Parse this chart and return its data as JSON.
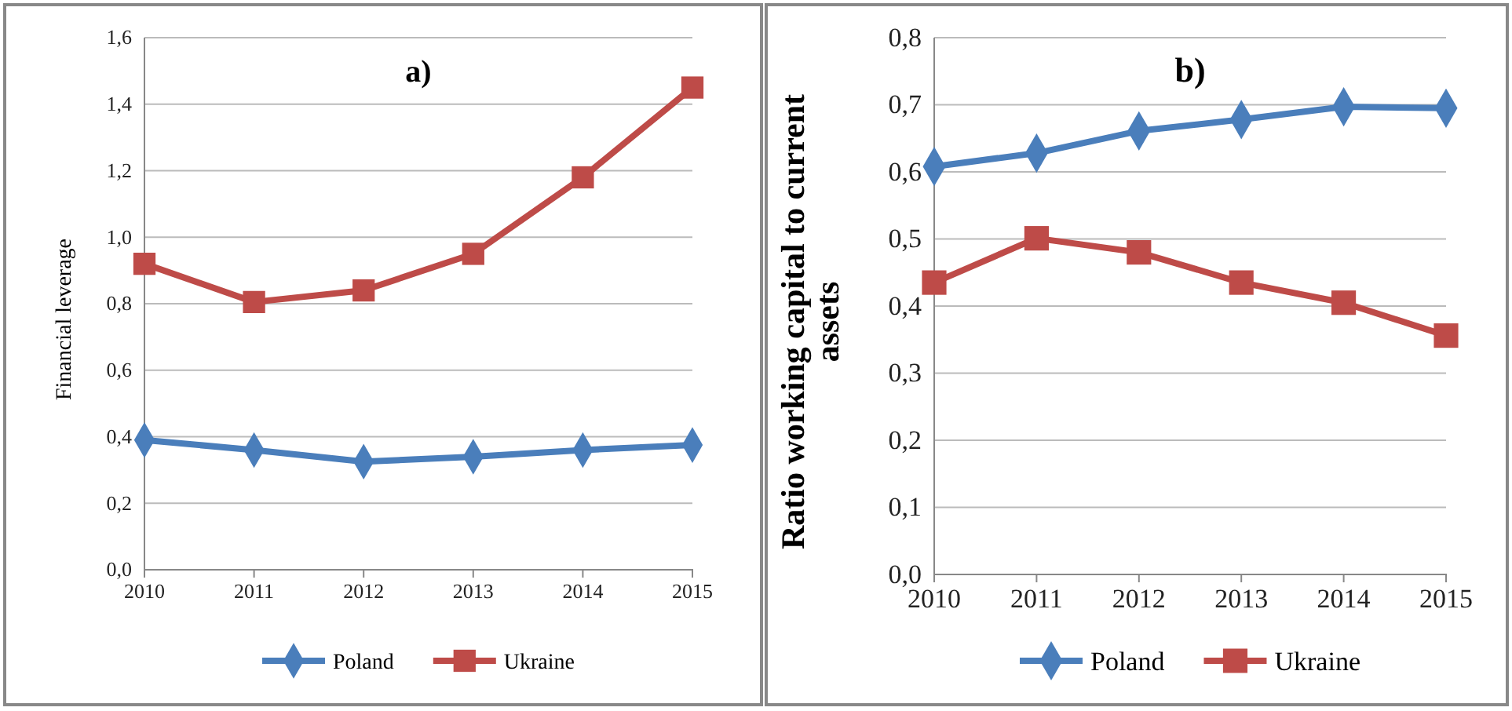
{
  "chart_data": [
    {
      "type": "line",
      "title": "a)",
      "ylabel": "Financial leverage",
      "categories": [
        "2010",
        "2011",
        "2012",
        "2013",
        "2014",
        "2015"
      ],
      "series": [
        {
          "name": "Poland",
          "color": "#4a7ebb",
          "marker": "diamond",
          "values": [
            0.39,
            0.36,
            0.325,
            0.34,
            0.36,
            0.375
          ]
        },
        {
          "name": "Ukraine",
          "color": "#be4b48",
          "marker": "square",
          "values": [
            0.92,
            0.805,
            0.84,
            0.95,
            1.18,
            1.45
          ]
        }
      ],
      "ylim": [
        0,
        1.6
      ],
      "yticks": [
        {
          "value": 0,
          "label": "0,0"
        },
        {
          "value": 0.2,
          "label": "0,2"
        },
        {
          "value": 0.4,
          "label": "0,4"
        },
        {
          "value": 0.6,
          "label": "0,6"
        },
        {
          "value": 0.8,
          "label": "0,8"
        },
        {
          "value": 1.0,
          "label": "1,0"
        },
        {
          "value": 1.2,
          "label": "1,2"
        },
        {
          "value": 1.4,
          "label": "1,4"
        },
        {
          "value": 1.6,
          "label": "1,6"
        }
      ],
      "grid": "y",
      "legend": "bottom"
    },
    {
      "type": "line",
      "title": "b)",
      "ylabel": "Ratio working capital to current assets",
      "categories": [
        "2010",
        "2011",
        "2012",
        "2013",
        "2014",
        "2015"
      ],
      "series": [
        {
          "name": "Poland",
          "color": "#4a7ebb",
          "marker": "diamond",
          "values": [
            0.608,
            0.628,
            0.661,
            0.678,
            0.697,
            0.695
          ]
        },
        {
          "name": "Ukraine",
          "color": "#be4b48",
          "marker": "square",
          "values": [
            0.435,
            0.501,
            0.48,
            0.435,
            0.405,
            0.356
          ]
        }
      ],
      "ylim": [
        0,
        0.8
      ],
      "yticks": [
        {
          "value": 0,
          "label": "0,0"
        },
        {
          "value": 0.1,
          "label": "0,1"
        },
        {
          "value": 0.2,
          "label": "0,2"
        },
        {
          "value": 0.3,
          "label": "0,3"
        },
        {
          "value": 0.4,
          "label": "0,4"
        },
        {
          "value": 0.5,
          "label": "0,5"
        },
        {
          "value": 0.6,
          "label": "0,6"
        },
        {
          "value": 0.7,
          "label": "0,7"
        },
        {
          "value": 0.8,
          "label": "0,8"
        }
      ],
      "grid": "y",
      "legend": "bottom"
    }
  ]
}
